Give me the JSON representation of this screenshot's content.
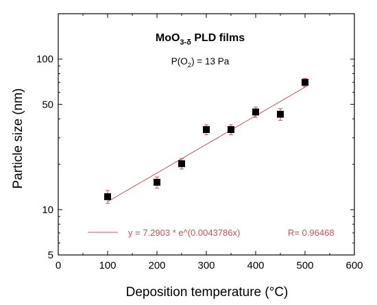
{
  "chart_data": {
    "type": "scatter",
    "title": "MoO3-δ PLD films",
    "title_parts": {
      "base": "MoO",
      "sub": "3-δ",
      "rest": " PLD films"
    },
    "subtitle": "P(O2) = 13 Pa",
    "subtitle_parts": {
      "pre": "P(O",
      "sub": "2",
      "post": ") = 13 Pa"
    },
    "xlabel": "Deposition temperature (°C)",
    "ylabel": "Particle size (nm)",
    "xlim": [
      0,
      600
    ],
    "ylim": [
      5,
      200
    ],
    "yscale": "log",
    "xticks": [
      0,
      100,
      200,
      300,
      400,
      500,
      600
    ],
    "xtick_labels": [
      "0",
      "100",
      "200",
      "300",
      "400",
      "500",
      "600"
    ],
    "yticks": [
      5,
      10,
      50,
      100
    ],
    "ytick_labels": [
      "5",
      "10",
      "50",
      "100"
    ],
    "grid": false,
    "points": [
      {
        "x": 100,
        "y": 12.2,
        "err": 1.2
      },
      {
        "x": 200,
        "y": 15.2,
        "err": 1.3
      },
      {
        "x": 250,
        "y": 20.2,
        "err": 1.6
      },
      {
        "x": 300,
        "y": 34.0,
        "err": 2.6
      },
      {
        "x": 350,
        "y": 34.0,
        "err": 2.6
      },
      {
        "x": 400,
        "y": 44.5,
        "err": 3.5
      },
      {
        "x": 450,
        "y": 43.0,
        "err": 3.8
      },
      {
        "x": 500,
        "y": 70.0,
        "err": 4.5
      }
    ],
    "fit": {
      "a": 7.2903,
      "b": 0.0043786,
      "x_range": [
        100,
        500
      ],
      "equation": "y = 7.2903 * e^(0.0043786x)",
      "r_label": "R= 0.96468"
    },
    "colors": {
      "points": "#000000",
      "fit": "#c85050",
      "axes": "#000000"
    }
  }
}
